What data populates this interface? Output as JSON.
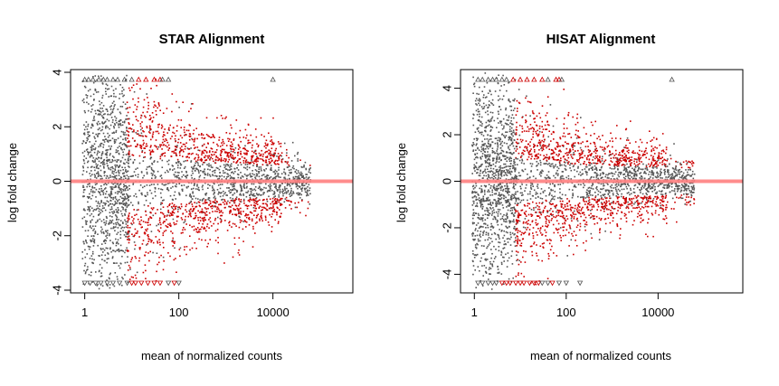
{
  "chart_data": [
    {
      "type": "scatter",
      "title": "STAR Alignment",
      "xlabel": "mean of normalized counts",
      "ylabel": "log fold change",
      "x_scale": "log10",
      "xlim": [
        0.5,
        500000
      ],
      "ylim": [
        -4.1,
        4.1
      ],
      "x_ticks": [
        1,
        100,
        10000
      ],
      "x_tick_labels": [
        "1",
        "100",
        "10000"
      ],
      "y_ticks": [
        -4,
        -2,
        0,
        2,
        4
      ],
      "y_tick_labels": [
        "-4",
        "-2",
        "0",
        "2",
        "4"
      ],
      "reference_line": {
        "y": 0,
        "color": "#ff8080"
      },
      "series": [
        {
          "color": "#555555",
          "x_range": [
            0.8,
            600000
          ],
          "shape": "point"
        },
        {
          "color": "#cc0000",
          "x_range": [
            8,
            30000
          ],
          "shape": "point"
        }
      ],
      "clipped_up": [
        1,
        1.2,
        1.5,
        2,
        2.5,
        3,
        4,
        5,
        7,
        10,
        14,
        20,
        30,
        40,
        45,
        60,
        10000
      ],
      "clipped_up_color": [
        "#555555",
        "#555555",
        "#555555",
        "#555555",
        "#555555",
        "#555555",
        "#555555",
        "#555555",
        "#555555",
        "#555555",
        "#cc0000",
        "#cc0000",
        "#cc0000",
        "#cc0000",
        "#555555",
        "#555555",
        "#555555"
      ],
      "clipped_down": [
        1,
        1.3,
        1.7,
        2.2,
        3,
        4,
        5.5,
        8,
        10,
        12,
        16,
        22,
        30,
        40,
        60,
        80,
        100
      ],
      "clipped_down_color": [
        "#555555",
        "#555555",
        "#555555",
        "#555555",
        "#555555",
        "#555555",
        "#555555",
        "#555555",
        "#cc0000",
        "#cc0000",
        "#cc0000",
        "#cc0000",
        "#cc0000",
        "#cc0000",
        "#555555",
        "#cc0000",
        "#555555"
      ]
    },
    {
      "type": "scatter",
      "title": "HISAT Alignment",
      "xlabel": "mean of normalized counts",
      "ylabel": "log fold change",
      "x_scale": "log10",
      "xlim": [
        0.5,
        700000
      ],
      "ylim": [
        -4.8,
        4.8
      ],
      "x_ticks": [
        1,
        100,
        10000
      ],
      "x_tick_labels": [
        "1",
        "100",
        "10000"
      ],
      "y_ticks": [
        -4,
        -2,
        0,
        2,
        4
      ],
      "y_tick_labels": [
        "-4",
        "-2",
        "0",
        "2",
        "4"
      ],
      "reference_line": {
        "y": 0,
        "color": "#ff8080"
      },
      "series": [
        {
          "color": "#555555",
          "x_range": [
            0.8,
            100000
          ],
          "shape": "point"
        },
        {
          "color": "#cc0000",
          "x_range": [
            5,
            60000
          ],
          "shape": "point"
        }
      ],
      "clipped_up": [
        1.2,
        1.5,
        2,
        2.5,
        3,
        4,
        5,
        7,
        10,
        14,
        20,
        30,
        40,
        60,
        70,
        80,
        20000
      ],
      "clipped_up_color": [
        "#555555",
        "#555555",
        "#555555",
        "#555555",
        "#555555",
        "#555555",
        "#555555",
        "#cc0000",
        "#cc0000",
        "#cc0000",
        "#cc0000",
        "#cc0000",
        "#555555",
        "#cc0000",
        "#cc0000",
        "#555555",
        "#555555"
      ],
      "clipped_down": [
        1.2,
        1.5,
        2,
        2.5,
        3,
        4,
        5,
        6,
        8,
        10,
        12,
        16,
        20,
        25,
        30,
        40,
        50,
        70,
        100,
        200
      ],
      "clipped_down_color": [
        "#555555",
        "#555555",
        "#555555",
        "#555555",
        "#555555",
        "#cc0000",
        "#cc0000",
        "#cc0000",
        "#cc0000",
        "#cc0000",
        "#cc0000",
        "#cc0000",
        "#cc0000",
        "#cc0000",
        "#555555",
        "#555555",
        "#cc0000",
        "#555555",
        "#555555",
        "#555555"
      ]
    }
  ]
}
